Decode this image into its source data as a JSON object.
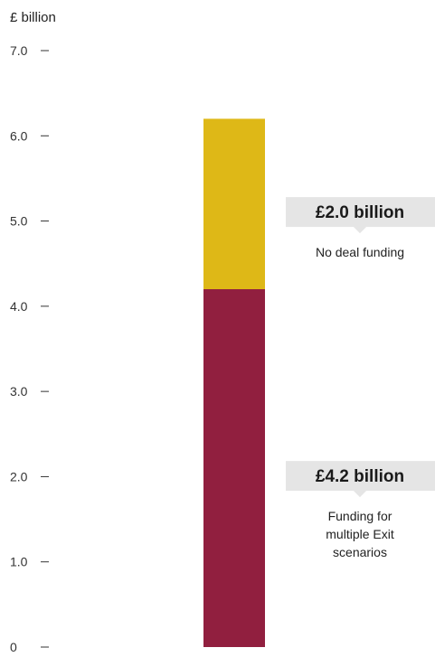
{
  "chart_data": {
    "type": "bar",
    "stacked": true,
    "ylabel": "£ billion",
    "ylim": [
      0,
      7.0
    ],
    "yticks": [
      {
        "value": 0,
        "label": "0"
      },
      {
        "value": 1.0,
        "label": "1.0"
      },
      {
        "value": 2.0,
        "label": "2.0"
      },
      {
        "value": 3.0,
        "label": "3.0"
      },
      {
        "value": 4.0,
        "label": "4.0"
      },
      {
        "value": 5.0,
        "label": "5.0"
      },
      {
        "value": 6.0,
        "label": "6.0"
      },
      {
        "value": 7.0,
        "label": "7.0"
      }
    ],
    "categories": [
      ""
    ],
    "series": [
      {
        "key": "multiple-exit",
        "value": 4.2,
        "color": "#911f3f",
        "value_label": "£4.2 billion",
        "description": [
          "Funding for",
          "multiple Exit",
          "scenarios"
        ]
      },
      {
        "key": "no-deal",
        "value": 2.0,
        "color": "#deb817",
        "value_label": "£2.0 billion",
        "description": [
          "No deal funding"
        ]
      }
    ],
    "callout_color": "#e5e5e5",
    "grid": false
  }
}
